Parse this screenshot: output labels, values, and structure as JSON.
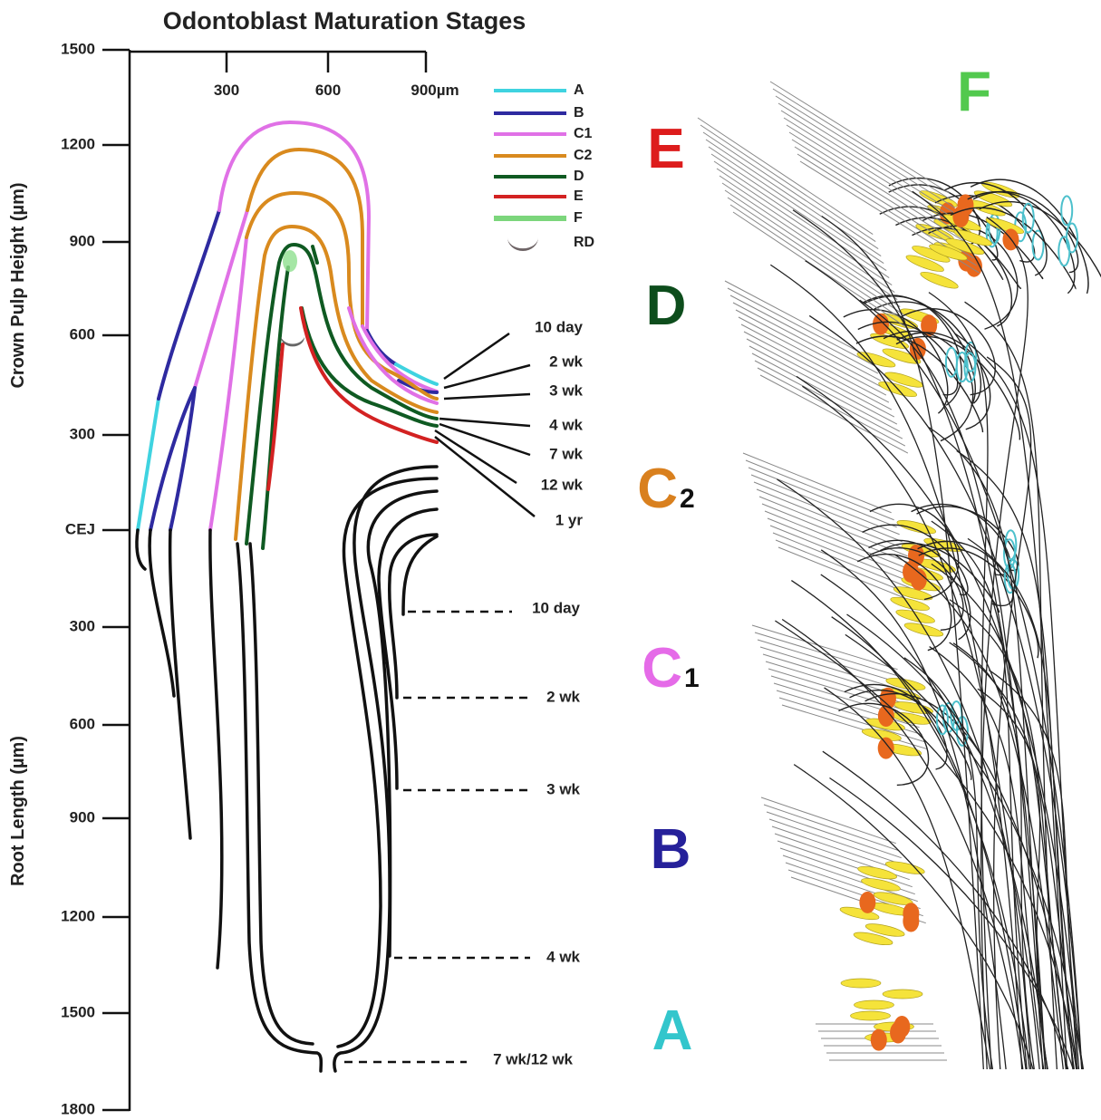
{
  "title": "Odontoblast Maturation Stages",
  "axis": {
    "left_ticks": [
      "1500",
      "1200",
      "900",
      "600",
      "300",
      "CEJ",
      "300",
      "600",
      "900",
      "1200",
      "1500",
      "1800"
    ],
    "top_ticks": [
      "300",
      "600",
      "900µm"
    ],
    "crown_label": "Crown Pulp Height (µm)",
    "root_label": "Root Length  (µm)"
  },
  "legend": [
    {
      "label": "A",
      "color": "#3fd3e0"
    },
    {
      "label": "B",
      "color": "#2e2aa0"
    },
    {
      "label": "C1",
      "color": "#e071e6"
    },
    {
      "label": "C2",
      "color": "#d98a1e"
    },
    {
      "label": "D",
      "color": "#0f5a22"
    },
    {
      "label": "E",
      "color": "#d32222"
    },
    {
      "label": "F",
      "color": "#7cd67c"
    },
    {
      "label": "RD",
      "color": "#6e6466"
    }
  ],
  "crown_stages": [
    "10 day",
    "2 wk",
    "3 wk",
    "4 wk",
    "7 wk",
    "12 wk",
    "1 yr"
  ],
  "root_stages": [
    "10 day",
    "2 wk",
    "3 wk",
    "4 wk",
    "7 wk/12 wk"
  ],
  "panel_letters": [
    {
      "letter": "E",
      "color": "#dd1c1c"
    },
    {
      "letter": "F",
      "color": "#52c94e"
    },
    {
      "letter": "D",
      "color": "#0d4d1c"
    },
    {
      "letter": "C",
      "sub": "2",
      "color": "#d9801e"
    },
    {
      "letter": "C",
      "sub": "1",
      "color": "#e56be8"
    },
    {
      "letter": "B",
      "color": "#25209a"
    },
    {
      "letter": "A",
      "color": "#33c6cc"
    }
  ]
}
